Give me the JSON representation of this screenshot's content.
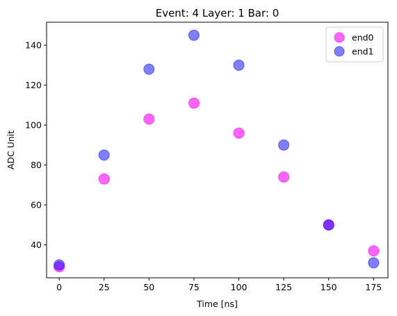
{
  "chart_data": {
    "type": "scatter",
    "title": "Event: 4 Layer: 1 Bar: 0",
    "xlabel": "Time [ns]",
    "ylabel": "ADC Unit",
    "xlim": [
      -7,
      183
    ],
    "ylim": [
      23.5,
      151.5
    ],
    "xticks": [
      0,
      25,
      50,
      75,
      100,
      125,
      150,
      175
    ],
    "yticks": [
      40,
      60,
      80,
      100,
      120,
      140
    ],
    "grid": false,
    "legend_position": "top-right",
    "series": [
      {
        "name": "end0",
        "color": "#ff00ff",
        "opacity": 0.6,
        "x": [
          0,
          25,
          50,
          75,
          100,
          125,
          150,
          175
        ],
        "y": [
          29,
          73,
          103,
          111,
          96,
          74,
          50,
          37
        ]
      },
      {
        "name": "end1",
        "color": "#0000ff",
        "opacity": 0.5,
        "x": [
          0,
          25,
          50,
          75,
          100,
          125,
          150,
          175
        ],
        "y": [
          30,
          85,
          128,
          145,
          130,
          90,
          50,
          31
        ]
      }
    ]
  }
}
